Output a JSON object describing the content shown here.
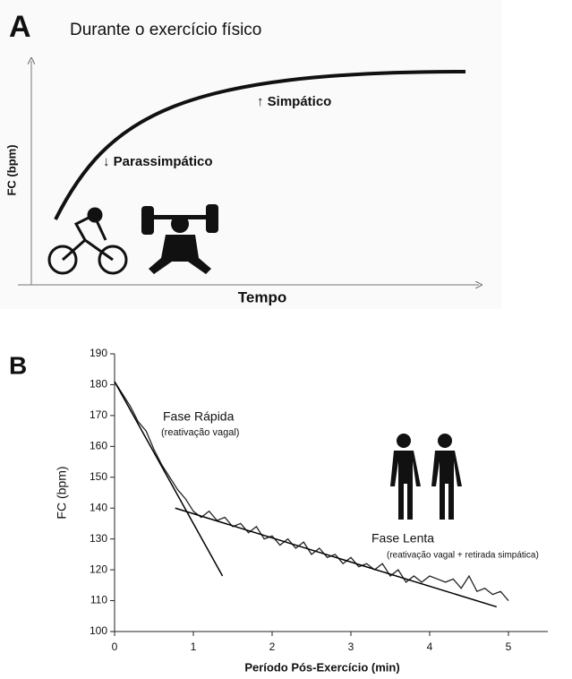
{
  "panel_a": {
    "label": "A",
    "title": "Durante o exercício físico",
    "y_label": "FC (bpm)",
    "x_label": "Tempo",
    "annotations": [
      "↑ Simpático",
      "↓ Parassimpático"
    ]
  },
  "chart_data": {
    "type": "line",
    "label": "B",
    "x_label": "Período Pós-Exercício (min)",
    "y_label": "FC (bpm)",
    "xlim": [
      0,
      5.5
    ],
    "xticks": [
      0,
      1,
      2,
      3,
      4,
      5
    ],
    "ylim": [
      100,
      190
    ],
    "yticks": [
      100,
      110,
      120,
      130,
      140,
      150,
      160,
      170,
      180,
      190
    ],
    "annotations": [
      "Fase Rápida",
      "(reativação vagal)",
      "Fase Lenta",
      "(reativação vagal + retirada simpática)"
    ],
    "series": [
      {
        "color": "#222222",
        "x": [
          0,
          0.1,
          0.2,
          0.3,
          0.4,
          0.5,
          0.6,
          0.7,
          0.8,
          0.9,
          1.0,
          1.1,
          1.2,
          1.3,
          1.4,
          1.5,
          1.6,
          1.7,
          1.8,
          1.9,
          2.0,
          2.1,
          2.2,
          2.3,
          2.4,
          2.5,
          2.6,
          2.7,
          2.8,
          2.9,
          3.0,
          3.1,
          3.2,
          3.3,
          3.4,
          3.5,
          3.6,
          3.7,
          3.8,
          3.9,
          4.0,
          4.1,
          4.2,
          4.3,
          4.4,
          4.5,
          4.6,
          4.7,
          4.8,
          4.9,
          5.0
        ],
        "values": [
          181,
          177,
          173,
          168,
          165,
          159,
          154,
          150,
          146,
          143,
          139,
          137,
          139,
          136,
          137,
          134,
          135,
          132,
          134,
          130,
          131,
          128,
          130,
          127,
          129,
          125,
          127,
          124,
          125,
          122,
          124,
          121,
          122,
          120,
          122,
          118,
          120,
          116,
          118,
          116,
          118,
          117,
          116,
          117,
          114,
          118,
          113,
          114,
          112,
          113,
          110
        ]
      },
      {
        "color": "#000000",
        "x": [
          0,
          1.37
        ],
        "values": [
          181,
          118
        ]
      },
      {
        "color": "#000000",
        "x": [
          0.77,
          4.85
        ],
        "values": [
          140,
          108
        ]
      }
    ]
  }
}
